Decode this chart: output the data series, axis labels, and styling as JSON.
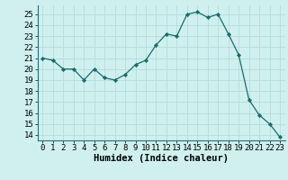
{
  "x": [
    0,
    1,
    2,
    3,
    4,
    5,
    6,
    7,
    8,
    9,
    10,
    11,
    12,
    13,
    14,
    15,
    16,
    17,
    18,
    19,
    20,
    21,
    22,
    23
  ],
  "y": [
    21.0,
    20.8,
    20.0,
    20.0,
    19.0,
    20.0,
    19.2,
    19.0,
    19.5,
    20.4,
    20.8,
    22.2,
    23.2,
    23.0,
    25.0,
    25.2,
    24.7,
    25.0,
    23.2,
    21.3,
    17.2,
    15.8,
    15.0,
    13.8
  ],
  "bg_color": "#cff0ef",
  "grid_color": "#b8dede",
  "line_color": "#1a6b6b",
  "marker_color": "#1a6b6b",
  "xlabel": "Humidex (Indice chaleur)",
  "ylabel": "",
  "xlim": [
    -0.5,
    23.5
  ],
  "ylim": [
    13.5,
    25.8
  ],
  "yticks": [
    14,
    15,
    16,
    17,
    18,
    19,
    20,
    21,
    22,
    23,
    24,
    25
  ],
  "xticks": [
    0,
    1,
    2,
    3,
    4,
    5,
    6,
    7,
    8,
    9,
    10,
    11,
    12,
    13,
    14,
    15,
    16,
    17,
    18,
    19,
    20,
    21,
    22,
    23
  ],
  "tick_fontsize": 6.5,
  "xlabel_fontsize": 7.5
}
